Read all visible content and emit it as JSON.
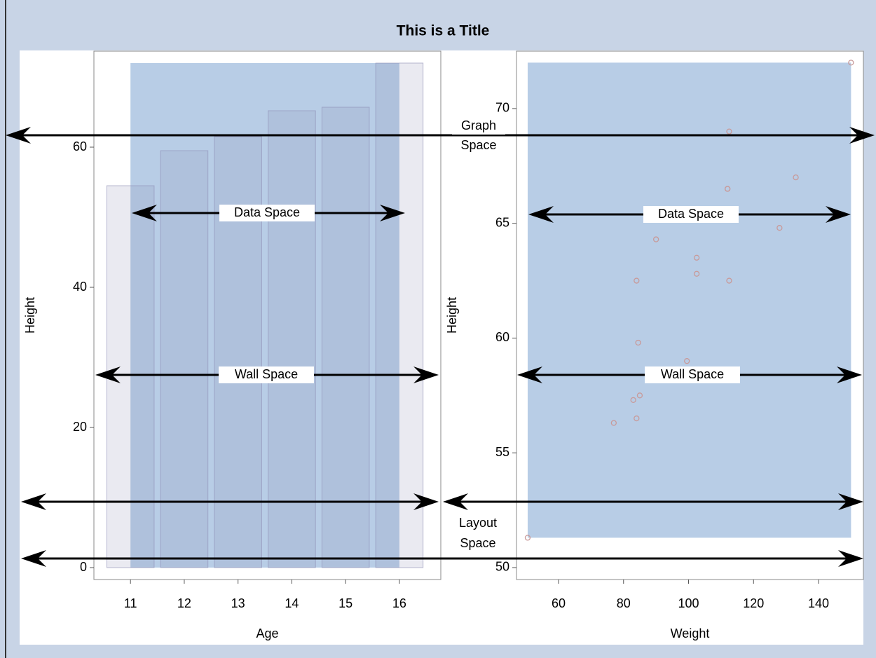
{
  "title": "This is a Title",
  "annotations": {
    "graph_space": [
      "Graph",
      "Space"
    ],
    "layout_space": [
      "Layout",
      "Space"
    ],
    "data_space_left": "Data Space",
    "wall_space_left": "Wall Space",
    "data_space_right": "Data Space",
    "wall_space_right": "Wall Space"
  },
  "chart_data": [
    {
      "type": "bar",
      "x": [
        11,
        12,
        13,
        14,
        15,
        16
      ],
      "values": [
        54.5,
        59.5,
        61.5,
        65.2,
        65.7,
        72
      ],
      "color": "#8c8cb4",
      "x_label": "Age",
      "y_label": "Height",
      "xlim": [
        10.32,
        16.77
      ],
      "ylim": [
        -1.7,
        73.7
      ],
      "xticks": [
        11,
        12,
        13,
        14,
        15,
        16
      ],
      "yticks": [
        0,
        20,
        40,
        60
      ]
    },
    {
      "type": "scatter",
      "x": [
        112.5,
        84,
        98,
        102.5,
        102.5,
        83,
        84.5,
        112.5,
        84,
        99.5,
        50.5,
        90,
        77,
        112,
        150,
        128,
        133,
        85,
        112
      ],
      "values": [
        69,
        56.5,
        65.3,
        62.8,
        63.5,
        57.3,
        59.8,
        62.5,
        62.5,
        59,
        51.3,
        64.3,
        56.3,
        66.5,
        72,
        64.8,
        67,
        57.5,
        66.5
      ],
      "color": "#c89a9a",
      "x_label": "Weight",
      "y_label": "Height",
      "xlim": [
        47.06,
        153.8
      ],
      "ylim": [
        49.48,
        72.5
      ],
      "xticks": [
        60,
        80,
        100,
        120,
        140
      ],
      "yticks": [
        50,
        55,
        60,
        65,
        70
      ]
    }
  ]
}
